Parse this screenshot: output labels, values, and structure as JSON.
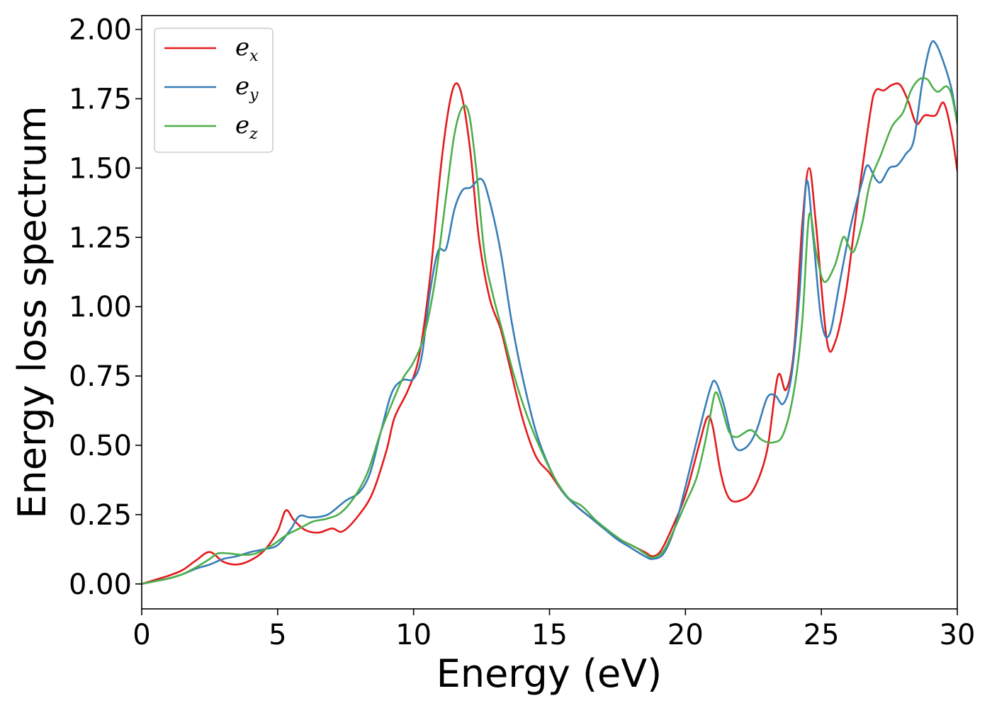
{
  "chart_data": {
    "type": "line",
    "title": "",
    "xlabel": "Energy (eV)",
    "ylabel": "Energy loss spectrum",
    "xlim": [
      0,
      30
    ],
    "ylim": [
      -0.09,
      2.05
    ],
    "xticks": [
      0,
      5,
      10,
      15,
      20,
      25,
      30
    ],
    "xtick_labels": [
      "0",
      "5",
      "10",
      "15",
      "20",
      "25",
      "30"
    ],
    "yticks": [
      0.0,
      0.25,
      0.5,
      0.75,
      1.0,
      1.25,
      1.5,
      1.75,
      2.0
    ],
    "ytick_labels": [
      "0.00",
      "0.25",
      "0.50",
      "0.75",
      "1.00",
      "1.25",
      "1.50",
      "1.75",
      "2.00"
    ],
    "grid": false,
    "legend_position": "top-left",
    "series": [
      {
        "name": "e_x",
        "legend_base": "e",
        "legend_sub": "x",
        "color": "#e41a1c",
        "points": [
          [
            0,
            0.0
          ],
          [
            0.5,
            0.015
          ],
          [
            1.0,
            0.03
          ],
          [
            1.5,
            0.05
          ],
          [
            2.0,
            0.085
          ],
          [
            2.5,
            0.115
          ],
          [
            3.0,
            0.08
          ],
          [
            3.5,
            0.07
          ],
          [
            4.0,
            0.085
          ],
          [
            4.5,
            0.12
          ],
          [
            5.0,
            0.19
          ],
          [
            5.3,
            0.265
          ],
          [
            5.6,
            0.23
          ],
          [
            6.0,
            0.195
          ],
          [
            6.5,
            0.185
          ],
          [
            7.0,
            0.2
          ],
          [
            7.4,
            0.19
          ],
          [
            8.0,
            0.25
          ],
          [
            8.5,
            0.33
          ],
          [
            9.0,
            0.48
          ],
          [
            9.3,
            0.6
          ],
          [
            9.8,
            0.7
          ],
          [
            10.2,
            0.82
          ],
          [
            10.6,
            1.1
          ],
          [
            11.0,
            1.5
          ],
          [
            11.3,
            1.72
          ],
          [
            11.55,
            1.805
          ],
          [
            11.8,
            1.75
          ],
          [
            12.1,
            1.55
          ],
          [
            12.4,
            1.25
          ],
          [
            12.8,
            1.03
          ],
          [
            13.2,
            0.92
          ],
          [
            13.5,
            0.8
          ],
          [
            14.0,
            0.6
          ],
          [
            14.5,
            0.46
          ],
          [
            15.0,
            0.4
          ],
          [
            15.5,
            0.33
          ],
          [
            16.0,
            0.28
          ],
          [
            16.5,
            0.24
          ],
          [
            17.0,
            0.2
          ],
          [
            17.5,
            0.165
          ],
          [
            18.0,
            0.14
          ],
          [
            18.5,
            0.115
          ],
          [
            18.8,
            0.1
          ],
          [
            19.1,
            0.12
          ],
          [
            19.5,
            0.2
          ],
          [
            20.0,
            0.32
          ],
          [
            20.5,
            0.5
          ],
          [
            20.8,
            0.6
          ],
          [
            21.0,
            0.57
          ],
          [
            21.3,
            0.4
          ],
          [
            21.6,
            0.31
          ],
          [
            22.0,
            0.3
          ],
          [
            22.5,
            0.34
          ],
          [
            23.0,
            0.48
          ],
          [
            23.4,
            0.75
          ],
          [
            23.7,
            0.7
          ],
          [
            24.0,
            0.85
          ],
          [
            24.3,
            1.3
          ],
          [
            24.55,
            1.5
          ],
          [
            24.8,
            1.3
          ],
          [
            25.2,
            0.88
          ],
          [
            25.5,
            0.87
          ],
          [
            25.9,
            1.05
          ],
          [
            26.3,
            1.35
          ],
          [
            26.8,
            1.7
          ],
          [
            27.0,
            1.78
          ],
          [
            27.3,
            1.78
          ],
          [
            27.6,
            1.8
          ],
          [
            27.9,
            1.8
          ],
          [
            28.2,
            1.74
          ],
          [
            28.5,
            1.66
          ],
          [
            28.8,
            1.69
          ],
          [
            29.2,
            1.69
          ],
          [
            29.5,
            1.735
          ],
          [
            29.8,
            1.62
          ],
          [
            30.0,
            1.49
          ]
        ]
      },
      {
        "name": "e_y",
        "legend_base": "e",
        "legend_sub": "y",
        "color": "#377eb8",
        "points": [
          [
            0,
            0.0
          ],
          [
            0.5,
            0.01
          ],
          [
            1.0,
            0.02
          ],
          [
            1.5,
            0.035
          ],
          [
            2.0,
            0.055
          ],
          [
            2.5,
            0.07
          ],
          [
            3.0,
            0.09
          ],
          [
            3.5,
            0.1
          ],
          [
            4.0,
            0.115
          ],
          [
            4.5,
            0.125
          ],
          [
            5.0,
            0.14
          ],
          [
            5.5,
            0.2
          ],
          [
            5.8,
            0.245
          ],
          [
            6.2,
            0.24
          ],
          [
            6.7,
            0.245
          ],
          [
            7.0,
            0.26
          ],
          [
            7.5,
            0.3
          ],
          [
            8.0,
            0.33
          ],
          [
            8.4,
            0.4
          ],
          [
            8.8,
            0.55
          ],
          [
            9.2,
            0.69
          ],
          [
            9.6,
            0.735
          ],
          [
            10.0,
            0.74
          ],
          [
            10.3,
            0.82
          ],
          [
            10.6,
            1.05
          ],
          [
            10.9,
            1.2
          ],
          [
            11.2,
            1.21
          ],
          [
            11.5,
            1.35
          ],
          [
            11.8,
            1.42
          ],
          [
            12.1,
            1.43
          ],
          [
            12.5,
            1.46
          ],
          [
            12.8,
            1.38
          ],
          [
            13.2,
            1.2
          ],
          [
            13.6,
            0.95
          ],
          [
            14.0,
            0.75
          ],
          [
            14.5,
            0.55
          ],
          [
            15.0,
            0.42
          ],
          [
            15.5,
            0.33
          ],
          [
            16.0,
            0.28
          ],
          [
            16.5,
            0.24
          ],
          [
            17.0,
            0.2
          ],
          [
            17.5,
            0.16
          ],
          [
            18.0,
            0.13
          ],
          [
            18.5,
            0.1
          ],
          [
            18.8,
            0.09
          ],
          [
            19.2,
            0.11
          ],
          [
            19.6,
            0.2
          ],
          [
            20.0,
            0.35
          ],
          [
            20.5,
            0.55
          ],
          [
            20.9,
            0.7
          ],
          [
            21.1,
            0.73
          ],
          [
            21.4,
            0.65
          ],
          [
            21.8,
            0.5
          ],
          [
            22.2,
            0.49
          ],
          [
            22.6,
            0.55
          ],
          [
            23.0,
            0.67
          ],
          [
            23.3,
            0.68
          ],
          [
            23.6,
            0.65
          ],
          [
            23.9,
            0.75
          ],
          [
            24.2,
            1.05
          ],
          [
            24.45,
            1.45
          ],
          [
            24.7,
            1.25
          ],
          [
            25.0,
            0.95
          ],
          [
            25.3,
            0.9
          ],
          [
            25.7,
            1.1
          ],
          [
            26.1,
            1.3
          ],
          [
            26.5,
            1.45
          ],
          [
            26.7,
            1.51
          ],
          [
            27.0,
            1.46
          ],
          [
            27.2,
            1.45
          ],
          [
            27.5,
            1.5
          ],
          [
            27.8,
            1.51
          ],
          [
            28.1,
            1.55
          ],
          [
            28.4,
            1.6
          ],
          [
            28.7,
            1.8
          ],
          [
            29.0,
            1.94
          ],
          [
            29.2,
            1.95
          ],
          [
            29.5,
            1.88
          ],
          [
            29.8,
            1.78
          ],
          [
            30.0,
            1.66
          ]
        ]
      },
      {
        "name": "e_z",
        "legend_base": "e",
        "legend_sub": "z",
        "color": "#4daf4a",
        "points": [
          [
            0,
            0.0
          ],
          [
            0.5,
            0.01
          ],
          [
            1.0,
            0.02
          ],
          [
            1.5,
            0.035
          ],
          [
            2.0,
            0.06
          ],
          [
            2.5,
            0.09
          ],
          [
            2.8,
            0.11
          ],
          [
            3.2,
            0.11
          ],
          [
            3.7,
            0.105
          ],
          [
            4.2,
            0.11
          ],
          [
            4.8,
            0.14
          ],
          [
            5.3,
            0.175
          ],
          [
            5.8,
            0.2
          ],
          [
            6.3,
            0.225
          ],
          [
            6.8,
            0.235
          ],
          [
            7.3,
            0.255
          ],
          [
            7.8,
            0.31
          ],
          [
            8.3,
            0.4
          ],
          [
            8.8,
            0.55
          ],
          [
            9.2,
            0.65
          ],
          [
            9.6,
            0.74
          ],
          [
            10.0,
            0.8
          ],
          [
            10.4,
            0.9
          ],
          [
            10.8,
            1.1
          ],
          [
            11.2,
            1.4
          ],
          [
            11.5,
            1.62
          ],
          [
            11.8,
            1.72
          ],
          [
            12.05,
            1.69
          ],
          [
            12.3,
            1.5
          ],
          [
            12.6,
            1.2
          ],
          [
            12.9,
            1.05
          ],
          [
            13.3,
            0.9
          ],
          [
            13.7,
            0.75
          ],
          [
            14.2,
            0.6
          ],
          [
            14.7,
            0.48
          ],
          [
            15.2,
            0.38
          ],
          [
            15.7,
            0.31
          ],
          [
            16.2,
            0.28
          ],
          [
            16.7,
            0.23
          ],
          [
            17.2,
            0.19
          ],
          [
            17.7,
            0.155
          ],
          [
            18.2,
            0.13
          ],
          [
            18.5,
            0.11
          ],
          [
            18.8,
            0.095
          ],
          [
            19.2,
            0.12
          ],
          [
            19.6,
            0.2
          ],
          [
            20.0,
            0.29
          ],
          [
            20.4,
            0.38
          ],
          [
            20.7,
            0.5
          ],
          [
            20.9,
            0.6
          ],
          [
            21.1,
            0.69
          ],
          [
            21.3,
            0.65
          ],
          [
            21.6,
            0.55
          ],
          [
            21.9,
            0.53
          ],
          [
            22.4,
            0.555
          ],
          [
            22.8,
            0.52
          ],
          [
            23.2,
            0.51
          ],
          [
            23.6,
            0.54
          ],
          [
            24.0,
            0.7
          ],
          [
            24.3,
            0.95
          ],
          [
            24.55,
            1.33
          ],
          [
            24.8,
            1.2
          ],
          [
            25.1,
            1.09
          ],
          [
            25.5,
            1.15
          ],
          [
            25.8,
            1.25
          ],
          [
            26.0,
            1.22
          ],
          [
            26.2,
            1.2
          ],
          [
            26.5,
            1.3
          ],
          [
            26.8,
            1.45
          ],
          [
            27.2,
            1.55
          ],
          [
            27.6,
            1.65
          ],
          [
            28.0,
            1.7
          ],
          [
            28.3,
            1.78
          ],
          [
            28.6,
            1.82
          ],
          [
            28.9,
            1.82
          ],
          [
            29.1,
            1.79
          ],
          [
            29.3,
            1.775
          ],
          [
            29.6,
            1.795
          ],
          [
            29.8,
            1.76
          ],
          [
            30.0,
            1.66
          ]
        ]
      }
    ]
  }
}
